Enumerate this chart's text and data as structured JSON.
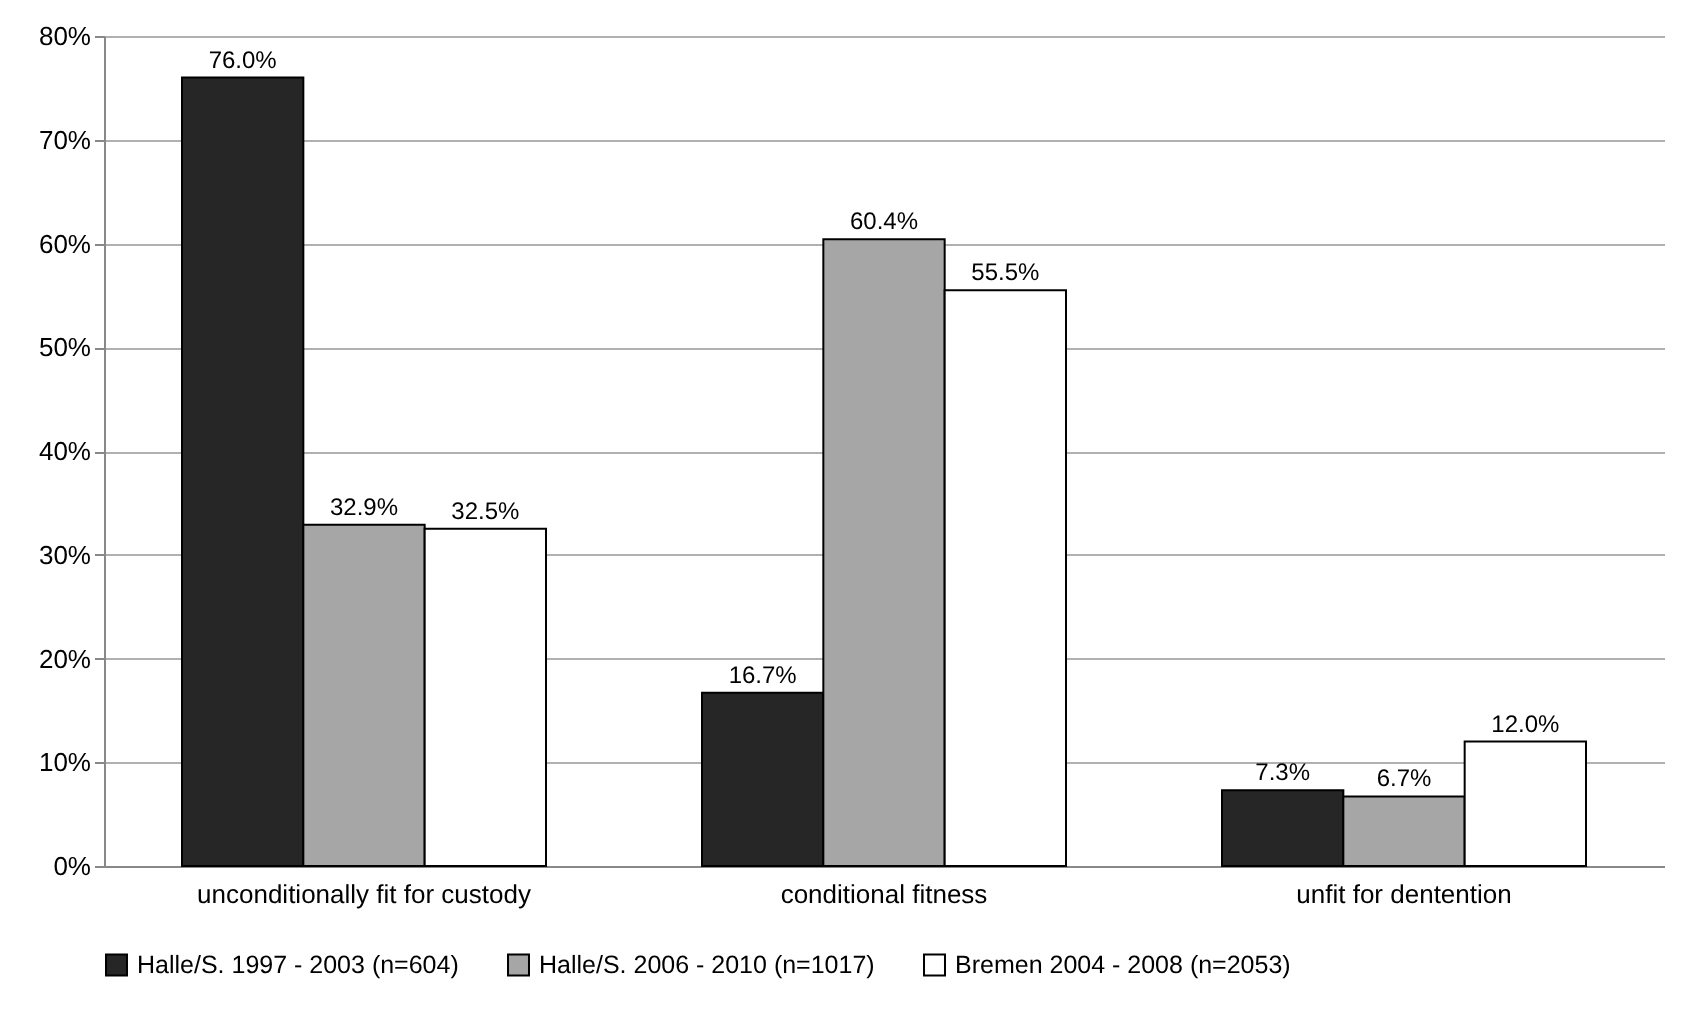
{
  "chart_data": {
    "type": "bar",
    "categories": [
      "unconditionally fit for custody",
      "conditional fitness",
      "unfit for dentention"
    ],
    "series": [
      {
        "name": "Halle/S. 1997 - 2003 (n=604)",
        "color": "#262626",
        "values": [
          76.0,
          16.7,
          7.3
        ],
        "value_labels": [
          "76.0%",
          "16.7%",
          "7.3%"
        ]
      },
      {
        "name": "Halle/S. 2006 - 2010 (n=1017)",
        "color": "#a6a6a6",
        "values": [
          32.9,
          60.4,
          6.7
        ],
        "value_labels": [
          "32.9%",
          "60.4%",
          "6.7%"
        ]
      },
      {
        "name": "Bremen 2004 - 2008 (n=2053)",
        "color": "#ffffff",
        "values": [
          32.5,
          55.5,
          12.0
        ],
        "value_labels": [
          "32.5%",
          "55.5%",
          "12.0%"
        ]
      }
    ],
    "ylim": [
      0,
      80
    ],
    "yticks": [
      {
        "value": 0,
        "label": "0%"
      },
      {
        "value": 10,
        "label": "10%"
      },
      {
        "value": 20,
        "label": "20%"
      },
      {
        "value": 30,
        "label": "30%"
      },
      {
        "value": 40,
        "label": "40%"
      },
      {
        "value": 50,
        "label": "50%"
      },
      {
        "value": 60,
        "label": "60%"
      },
      {
        "value": 70,
        "label": "70%"
      },
      {
        "value": 80,
        "label": "80%"
      }
    ],
    "grid": "y",
    "legend": "bottom"
  }
}
